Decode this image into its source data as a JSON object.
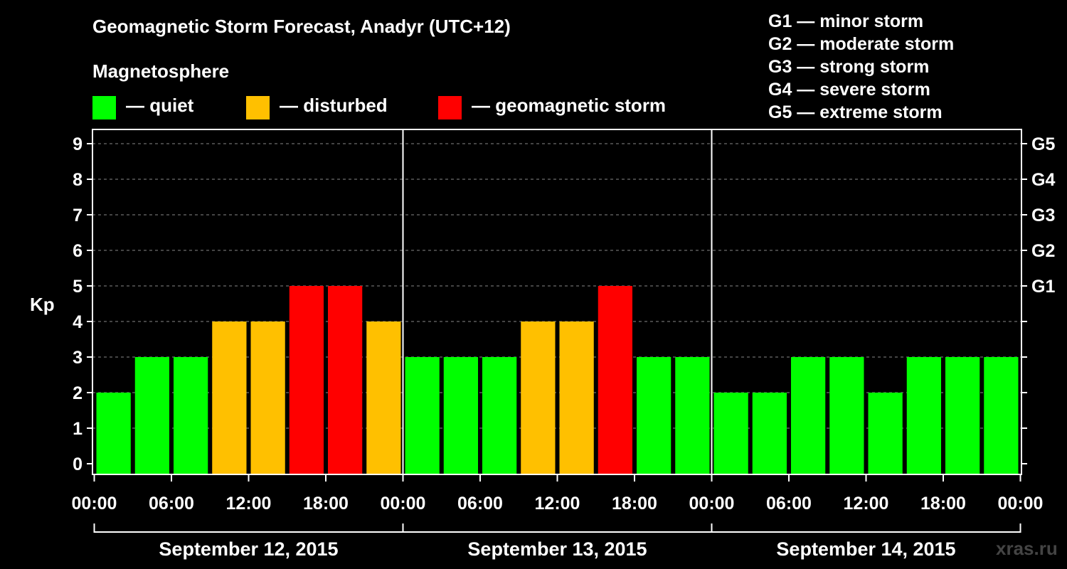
{
  "chart_data": {
    "type": "bar",
    "title": "Geomagnetic Storm Forecast, Anadyr (UTC+12)",
    "ylabel": "Kp",
    "ylim": [
      0,
      9
    ],
    "yticks": [
      "0",
      "1",
      "2",
      "3",
      "4",
      "5",
      "6",
      "7",
      "8",
      "9"
    ],
    "right_axis_ticks": [
      {
        "kp": 5,
        "label": "G1"
      },
      {
        "kp": 6,
        "label": "G2"
      },
      {
        "kp": 7,
        "label": "G3"
      },
      {
        "kp": 8,
        "label": "G4"
      },
      {
        "kp": 9,
        "label": "G5"
      }
    ],
    "xtick_labels": [
      "00:00",
      "06:00",
      "12:00",
      "18:00",
      "00:00",
      "06:00",
      "12:00",
      "18:00",
      "00:00",
      "06:00",
      "12:00",
      "18:00",
      "00:00"
    ],
    "days": [
      "September 12, 2015",
      "September 13, 2015",
      "September 14, 2015"
    ],
    "intervals_per_day": 8,
    "values": [
      2,
      3,
      3,
      4,
      4,
      5,
      5,
      4,
      3,
      3,
      3,
      4,
      4,
      5,
      3,
      3,
      2,
      2,
      3,
      3,
      2,
      3,
      3,
      3
    ],
    "grid": "horizontal dashed",
    "colors": {
      "quiet": "#00ff00",
      "disturbed": "#ffc000",
      "storm": "#ff0000"
    },
    "thresholds": {
      "disturbed": 4,
      "storm": 5
    }
  },
  "legend": {
    "magnetosphere_label": "Magnetosphere",
    "items": [
      {
        "color": "#00ff00",
        "label": "— quiet"
      },
      {
        "color": "#ffc000",
        "label": "— disturbed"
      },
      {
        "color": "#ff0000",
        "label": "— geomagnetic storm"
      }
    ]
  },
  "storm_levels": [
    "G1 — minor storm",
    "G2 — moderate storm",
    "G3 — strong storm",
    "G4 — severe storm",
    "G5 — extreme storm"
  ],
  "watermark": "xras.ru"
}
